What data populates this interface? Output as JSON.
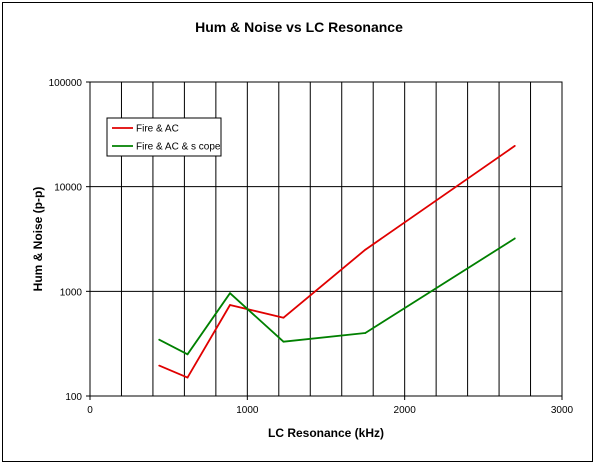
{
  "chart_data": {
    "type": "line",
    "title": "Hum & Noise vs LC Resonance",
    "xlabel": "LC Resonance (kHz)",
    "ylabel": "Hum & Noise (p-p)",
    "xlim": [
      0,
      3000
    ],
    "ylim": [
      100,
      100000
    ],
    "yscale": "log",
    "x_ticks": [
      "0",
      "1000",
      "2000",
      "3000"
    ],
    "y_ticks": [
      "100",
      "1000",
      "10000",
      "100000"
    ],
    "grid": true,
    "legend_position": "top-left",
    "series": [
      {
        "name": "Fire & AC",
        "color": "#e00000",
        "points": [
          [
            440,
            195
          ],
          [
            620,
            150
          ],
          [
            890,
            740
          ],
          [
            1230,
            560
          ],
          [
            1750,
            2500
          ],
          [
            2700,
            24500
          ]
        ]
      },
      {
        "name": "Fire & AC & s cope",
        "color": "#008000",
        "points": [
          [
            440,
            345
          ],
          [
            620,
            250
          ],
          [
            890,
            960
          ],
          [
            1230,
            330
          ],
          [
            1750,
            400
          ],
          [
            2700,
            3200
          ]
        ]
      }
    ]
  }
}
